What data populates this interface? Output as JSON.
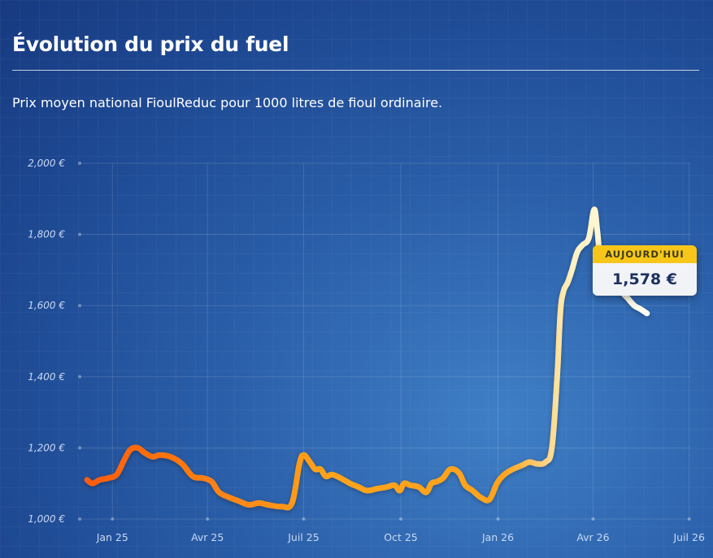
{
  "title": "Évolution du prix du fuel",
  "subtitle": "Prix moyen national FioulReduc pour 1000 litres de fioul ordinaire.",
  "tooltip": {
    "label": "AUJOURD'HUI",
    "value": "1,578 €"
  },
  "colors": {
    "start": "#ff5a0a",
    "mid": "#ffa31a",
    "pale": "#fff2c2",
    "end": "#ffffff",
    "tooltip_header": "#f7c619"
  },
  "chart_data": {
    "type": "line",
    "title": "Évolution du prix du fuel",
    "ylabel": "",
    "xlabel": "",
    "ylim": [
      1000,
      2000
    ],
    "yticks": [
      1000,
      1200,
      1400,
      1600,
      1800,
      2000
    ],
    "ytick_labels": [
      "1,000 €",
      "1,200 €",
      "1,400 €",
      "1,600 €",
      "1,800 €",
      "2,000 €"
    ],
    "xticks": [
      "2025-01-01",
      "2025-04-01",
      "2025-07-01",
      "2025-10-01",
      "2026-01-01",
      "2026-04-01",
      "2026-07-01"
    ],
    "xtick_labels": [
      "Jan 25",
      "Avr 25",
      "Juil 25",
      "Oct 25",
      "Jan 26",
      "Avr 26",
      "Juil 26"
    ],
    "grid": true,
    "series": [
      {
        "x": [
          "2024-12-08",
          "2024-12-13",
          "2024-12-20",
          "2024-12-28",
          "2025-01-05",
          "2025-01-12",
          "2025-01-18",
          "2025-01-25",
          "2025-02-01",
          "2025-02-08",
          "2025-02-15",
          "2025-02-25",
          "2025-03-08",
          "2025-03-18",
          "2025-03-28",
          "2025-04-05",
          "2025-04-12",
          "2025-04-22",
          "2025-05-01",
          "2025-05-10",
          "2025-05-20",
          "2025-05-28",
          "2025-06-10",
          "2025-06-20",
          "2025-06-27",
          "2025-07-01",
          "2025-07-07",
          "2025-07-12",
          "2025-07-17",
          "2025-07-22",
          "2025-07-28",
          "2025-08-05",
          "2025-08-14",
          "2025-08-22",
          "2025-08-30",
          "2025-09-08",
          "2025-09-18",
          "2025-09-25",
          "2025-09-30",
          "2025-10-04",
          "2025-10-10",
          "2025-10-18",
          "2025-10-25",
          "2025-10-30",
          "2025-11-04",
          "2025-11-10",
          "2025-11-17",
          "2025-11-25",
          "2025-12-01",
          "2025-12-08",
          "2025-12-16",
          "2025-12-24",
          "2025-12-31",
          "2026-01-07",
          "2026-01-15",
          "2026-01-23",
          "2026-01-31",
          "2026-02-07",
          "2026-02-15",
          "2026-02-21",
          "2026-02-26",
          "2026-03-01",
          "2026-03-04",
          "2026-03-08",
          "2026-03-12",
          "2026-03-17",
          "2026-03-22",
          "2026-03-28",
          "2026-04-02",
          "2026-04-05",
          "2026-04-08",
          "2026-04-11",
          "2026-04-14",
          "2026-04-17",
          "2026-04-22",
          "2026-04-28",
          "2026-05-04",
          "2026-05-10",
          "2026-05-16",
          "2026-05-22"
        ],
        "y": [
          1110,
          1100,
          1110,
          1115,
          1125,
          1165,
          1195,
          1200,
          1185,
          1175,
          1180,
          1175,
          1155,
          1120,
          1115,
          1105,
          1075,
          1060,
          1050,
          1040,
          1045,
          1040,
          1035,
          1045,
          1155,
          1180,
          1160,
          1140,
          1140,
          1120,
          1125,
          1115,
          1100,
          1090,
          1080,
          1085,
          1090,
          1095,
          1080,
          1100,
          1095,
          1090,
          1075,
          1100,
          1105,
          1115,
          1140,
          1130,
          1095,
          1080,
          1060,
          1055,
          1100,
          1125,
          1140,
          1150,
          1160,
          1155,
          1160,
          1200,
          1400,
          1580,
          1640,
          1665,
          1700,
          1750,
          1770,
          1790,
          1870,
          1810,
          1720,
          1700,
          1690,
          1710,
          1680,
          1640,
          1620,
          1600,
          1590,
          1578
        ]
      }
    ],
    "annotations": [
      {
        "label": "AUJOURD'HUI",
        "value": "1,578 €"
      }
    ]
  }
}
